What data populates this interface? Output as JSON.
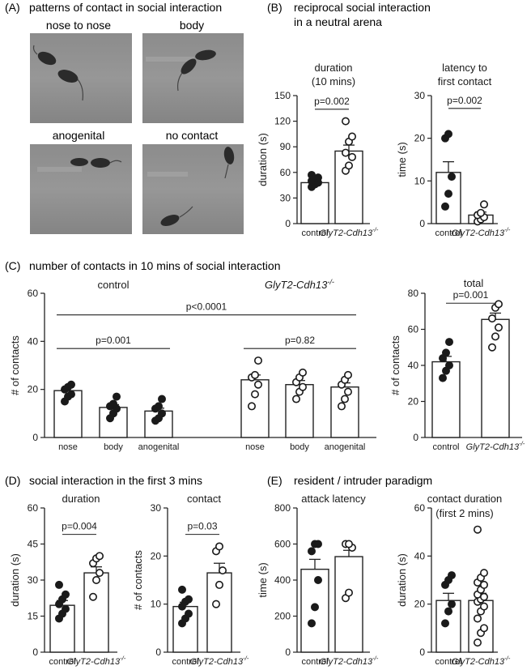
{
  "panels": {
    "A": {
      "letter": "(A)",
      "title": "patterns of contact in social interaction",
      "images": [
        {
          "label": "nose to nose",
          "art": "two-mice-nose-to-nose"
        },
        {
          "label": "body",
          "art": "two-mice-body-contact"
        },
        {
          "label": "anogenital",
          "art": "two-mice-anogenital"
        },
        {
          "label": "no contact",
          "art": "two-mice-apart"
        }
      ]
    },
    "B": {
      "letter": "(B)",
      "title_line1": "reciprocal social interaction",
      "title_line2": "in a neutral arena"
    },
    "C": {
      "letter": "(C)",
      "title": "number of contacts in 10 mins of social interaction"
    },
    "D": {
      "letter": "(D)",
      "title": "social interaction in the first 3 mins"
    },
    "E": {
      "letter": "(E)",
      "title": "resident / intruder paradigm"
    }
  },
  "legend_labels": {
    "control": "control",
    "mutant_base": "GlyT2-Cdh13",
    "mutant_sup": "-/-"
  },
  "chart_data": [
    {
      "id": "B1",
      "type": "bar",
      "panel": "B",
      "title_lines": [
        "duration",
        "(10 mins)"
      ],
      "xlabel": "",
      "ylabel": "duration (s)",
      "ylim": [
        0,
        150
      ],
      "yticks": [
        0,
        30,
        60,
        90,
        120,
        150
      ],
      "categories": [
        "control",
        "GlyT2-Cdh13-/-"
      ],
      "values": [
        48,
        85
      ],
      "sem": [
        4,
        7
      ],
      "points": [
        [
          43,
          46,
          48,
          50,
          52,
          54,
          57
        ],
        [
          62,
          68,
          78,
          83,
          96,
          102,
          120
        ]
      ],
      "markers": [
        "filled",
        "open"
      ],
      "brackets": [
        {
          "from": 0,
          "to": 1,
          "y": 134,
          "label": "p=0.002"
        }
      ]
    },
    {
      "id": "B2",
      "type": "bar",
      "panel": "B",
      "title_lines": [
        "latency to",
        "first contact"
      ],
      "xlabel": "",
      "ylabel": "time (s)",
      "ylim": [
        0,
        30
      ],
      "yticks": [
        0,
        10,
        20,
        30
      ],
      "categories": [
        "control",
        "GlyT2-Cdh13-/-"
      ],
      "values": [
        12,
        2
      ],
      "sem": [
        2.5,
        0.7
      ],
      "points": [
        [
          4,
          7,
          11,
          20,
          21
        ],
        [
          0.5,
          1,
          1.5,
          2,
          2.5,
          4.5
        ]
      ],
      "markers": [
        "filled",
        "open"
      ],
      "brackets": [
        {
          "from": 0,
          "to": 1,
          "y": 27,
          "label": "p=0.002"
        }
      ]
    },
    {
      "id": "C1",
      "type": "bar",
      "panel": "C",
      "group_labels": [
        "control",
        "GlyT2-Cdh13-/-"
      ],
      "xlabel": "",
      "ylabel": "# of contacts",
      "ylim": [
        0,
        60
      ],
      "yticks": [
        0,
        20,
        40,
        60
      ],
      "categories": [
        "nose",
        "body",
        "anogenital",
        "nose",
        "body",
        "anogenital"
      ],
      "values": [
        19.5,
        12.5,
        11,
        24,
        22,
        21
      ],
      "sem": [
        1.3,
        1.2,
        1.2,
        2,
        1.7,
        1.7
      ],
      "points": [
        [
          15,
          17,
          18,
          20,
          21,
          22
        ],
        [
          8,
          10,
          12,
          13,
          14,
          17
        ],
        [
          7,
          8,
          10,
          12,
          13,
          16
        ],
        [
          13,
          18,
          22,
          25,
          26,
          32
        ],
        [
          16,
          19,
          21,
          23,
          25,
          27
        ],
        [
          13,
          16,
          19,
          22,
          24,
          26
        ]
      ],
      "markers": [
        "filled",
        "filled",
        "filled",
        "open",
        "open",
        "open"
      ],
      "brackets": [
        {
          "from": 0,
          "to": 5,
          "y": 51,
          "label": "p<0.0001"
        },
        {
          "from": 0,
          "to": 2,
          "y": 37,
          "label": "p=0.001"
        },
        {
          "from": 3,
          "to": 5,
          "y": 37,
          "label": "p=0.82"
        }
      ]
    },
    {
      "id": "C2",
      "type": "bar",
      "panel": "C",
      "title_lines": [
        "total"
      ],
      "xlabel": "",
      "ylabel": "# of contacts",
      "ylim": [
        0,
        80
      ],
      "yticks": [
        0,
        20,
        40,
        60,
        80
      ],
      "categories": [
        "control",
        "GlyT2-Cdh13-/-"
      ],
      "values": [
        42,
        65.5
      ],
      "sem": [
        3,
        3.5
      ],
      "points": [
        [
          33,
          37,
          40,
          44,
          47,
          53
        ],
        [
          50,
          56,
          61,
          66,
          72,
          74
        ]
      ],
      "markers": [
        "filled",
        "open"
      ],
      "brackets": [
        {
          "from": 0,
          "to": 1,
          "y": 74.5,
          "label": "p=0.001"
        }
      ]
    },
    {
      "id": "D1",
      "type": "bar",
      "panel": "D",
      "title_lines": [
        "duration"
      ],
      "xlabel": "",
      "ylabel": "duration (s)",
      "ylim": [
        0,
        60
      ],
      "yticks": [
        0,
        15,
        30,
        45,
        60
      ],
      "categories": [
        "control",
        "GlyT2-Cdh13-/-"
      ],
      "values": [
        19.5,
        33
      ],
      "sem": [
        2,
        2.5
      ],
      "points": [
        [
          14,
          16,
          18,
          20,
          22,
          24,
          28
        ],
        [
          23,
          30,
          33,
          37,
          39,
          40
        ]
      ],
      "markers": [
        "filled",
        "open"
      ],
      "brackets": [
        {
          "from": 0,
          "to": 1,
          "y": 49,
          "label": "p=0.004"
        }
      ]
    },
    {
      "id": "D2",
      "type": "bar",
      "panel": "D",
      "title_lines": [
        "contact"
      ],
      "xlabel": "",
      "ylabel": "# of contacts",
      "ylim": [
        0,
        30
      ],
      "yticks": [
        0,
        10,
        20,
        30
      ],
      "categories": [
        "control",
        "GlyT2-Cdh13-/-"
      ],
      "values": [
        9.5,
        16.5
      ],
      "sem": [
        0.9,
        2
      ],
      "points": [
        [
          6,
          7,
          8,
          9.5,
          10.5,
          11,
          13
        ],
        [
          10,
          14,
          17,
          21,
          22
        ]
      ],
      "markers": [
        "filled",
        "open"
      ],
      "brackets": [
        {
          "from": 0,
          "to": 1,
          "y": 24.5,
          "label": "p=0.03"
        }
      ]
    },
    {
      "id": "E1",
      "type": "bar",
      "panel": "E",
      "title_lines": [
        "attack latency"
      ],
      "xlabel": "",
      "ylabel": "time (s)",
      "ylim": [
        0,
        800
      ],
      "yticks": [
        0,
        200,
        400,
        600,
        800
      ],
      "categories": [
        "control",
        "GlyT2-Cdh13-/-"
      ],
      "values": [
        460,
        530
      ],
      "sem": [
        55,
        35
      ],
      "points": [
        [
          160,
          250,
          400,
          560,
          600,
          600
        ],
        [
          300,
          330,
          580,
          600,
          600
        ]
      ],
      "markers": [
        "filled",
        "open"
      ],
      "brackets": []
    },
    {
      "id": "E2",
      "type": "bar",
      "panel": "E",
      "title_lines": [
        "contact duration",
        "(first 2 mins)"
      ],
      "xlabel": "",
      "ylabel": "duration (s)",
      "ylim": [
        0,
        60
      ],
      "yticks": [
        0,
        20,
        40,
        60
      ],
      "categories": [
        "control",
        "GlyT2-Cdh13-/-"
      ],
      "values": [
        21.5,
        21.5
      ],
      "sem": [
        3,
        3
      ],
      "points": [
        [
          12,
          17,
          20,
          28,
          30,
          32
        ],
        [
          4,
          8,
          10,
          14,
          17,
          19,
          21,
          22,
          23,
          24,
          26,
          28,
          29,
          31,
          33,
          51
        ]
      ],
      "markers": [
        "filled",
        "open"
      ],
      "brackets": []
    }
  ]
}
